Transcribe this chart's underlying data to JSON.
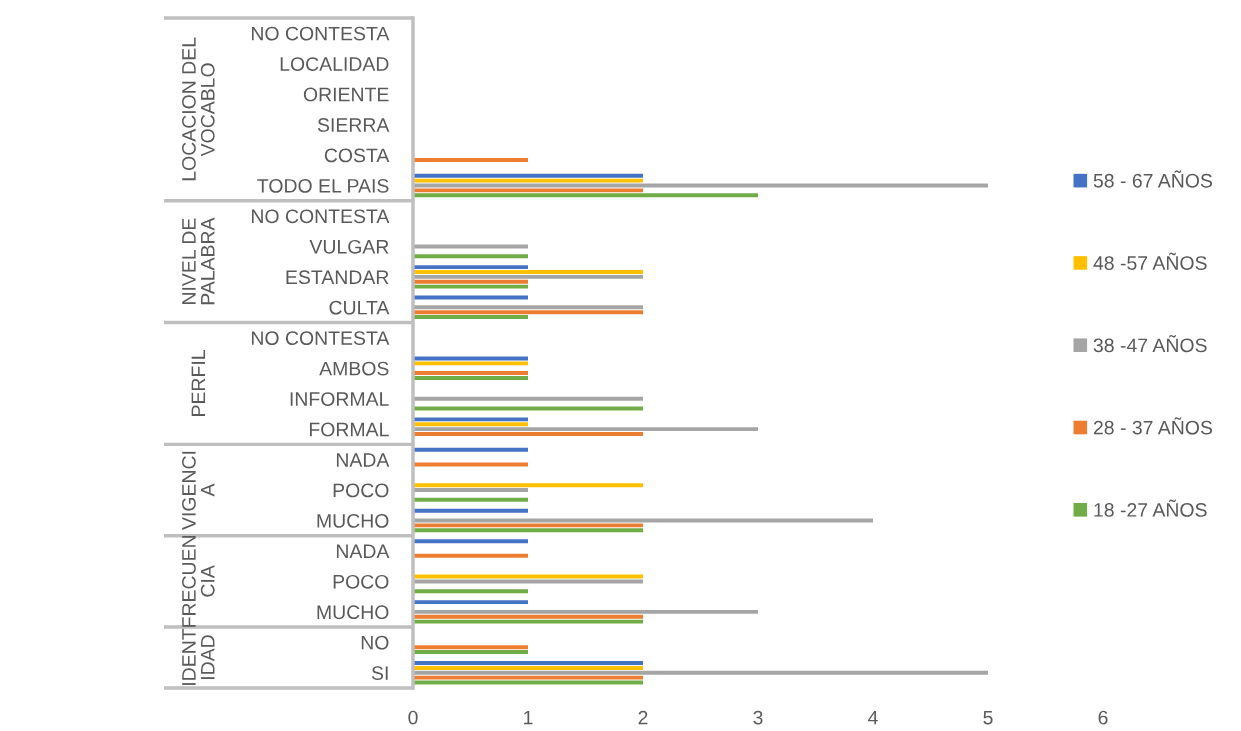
{
  "chart_data": {
    "type": "bar",
    "orientation": "horizontal",
    "categories": [
      "NO CONTESTA",
      "LOCALIDAD",
      "ORIENTE",
      "SIERRA",
      "COSTA",
      "TODO EL PAIS",
      "NO CONTESTA",
      "VULGAR",
      "ESTANDAR",
      "CULTA",
      "NO CONTESTA",
      "AMBOS",
      "INFORMAL",
      "FORMAL",
      "NADA",
      "POCO",
      "MUCHO",
      "NADA",
      "POCO",
      "MUCHO",
      "NO",
      "SI"
    ],
    "series": [
      {
        "name": "58 - 67 AÑOS",
        "color": "#4472c4",
        "values": [
          null,
          null,
          null,
          null,
          null,
          2,
          null,
          null,
          1,
          1,
          null,
          1,
          null,
          1,
          1,
          null,
          1,
          1,
          null,
          1,
          null,
          2
        ]
      },
      {
        "name": "48 -57 AÑOS",
        "color": "#ffc000",
        "values": [
          null,
          null,
          null,
          null,
          null,
          2,
          null,
          null,
          2,
          null,
          null,
          1,
          null,
          1,
          null,
          2,
          null,
          null,
          2,
          null,
          null,
          2
        ]
      },
      {
        "name": "38 -47 AÑOS",
        "color": "#a5a5a5",
        "values": [
          null,
          null,
          null,
          null,
          null,
          5,
          null,
          1,
          2,
          2,
          null,
          null,
          2,
          3,
          null,
          1,
          4,
          null,
          2,
          3,
          null,
          5
        ]
      },
      {
        "name": "28 - 37 AÑOS",
        "color": "#ed7d31",
        "values": [
          null,
          null,
          null,
          null,
          1,
          2,
          null,
          null,
          1,
          2,
          null,
          1,
          null,
          2,
          1,
          null,
          2,
          1,
          null,
          2,
          1,
          2
        ]
      },
      {
        "name": "18 -27 AÑOS",
        "color": "#70ad47",
        "values": [
          null,
          null,
          null,
          null,
          null,
          3,
          null,
          1,
          1,
          1,
          null,
          1,
          2,
          null,
          null,
          1,
          2,
          null,
          1,
          2,
          1,
          2
        ]
      }
    ],
    "xlim": [
      0,
      6
    ],
    "xticks": [
      0,
      1,
      2,
      3,
      4,
      5,
      6
    ],
    "legend": "right",
    "annotations": [
      "LOCACION DEL\nVOCABLO",
      "NIVEL DE\nPALABRA",
      "PERFIL",
      "VIGENCI\nA",
      "FRECUEN\nCIA",
      "IDENT\nIDAD"
    ]
  }
}
